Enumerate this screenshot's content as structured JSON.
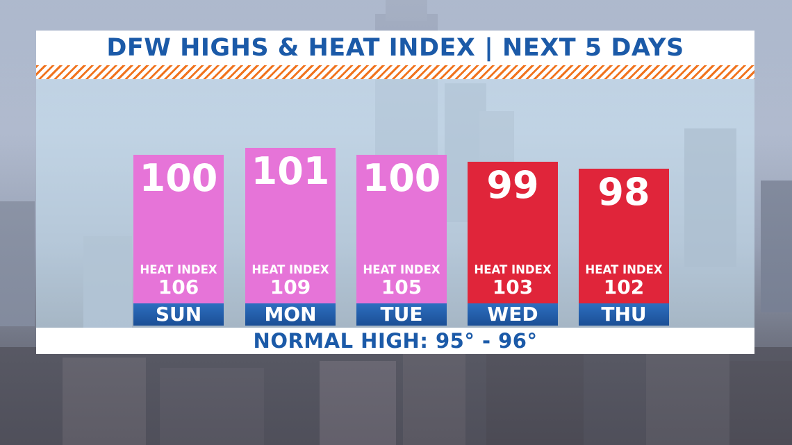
{
  "title": "DFW HIGHS & HEAT INDEX | NEXT 5 DAYS",
  "footer": "NORMAL HIGH: 95° - 96°",
  "heat_index_label": "HEAT INDEX",
  "colors": {
    "title_text": "#1b5aa8",
    "accent_stripe": "#f0731e",
    "bar_pink": "#e674d8",
    "bar_red": "#e0253a",
    "day_label": "#1b4f95"
  },
  "chart_data": {
    "type": "bar",
    "categories": [
      "SUN",
      "MON",
      "TUE",
      "WED",
      "THU"
    ],
    "series": [
      {
        "values": [
          100,
          101,
          100,
          99,
          98
        ]
      },
      {
        "values": [
          106,
          109,
          105,
          103,
          102
        ]
      }
    ],
    "bar_colors": [
      "#e674d8",
      "#e674d8",
      "#e674d8",
      "#e0253a",
      "#e0253a"
    ],
    "title": "DFW HIGHS & HEAT INDEX | NEXT 5 DAYS",
    "annotation": "NORMAL HIGH: 95° - 96°"
  }
}
